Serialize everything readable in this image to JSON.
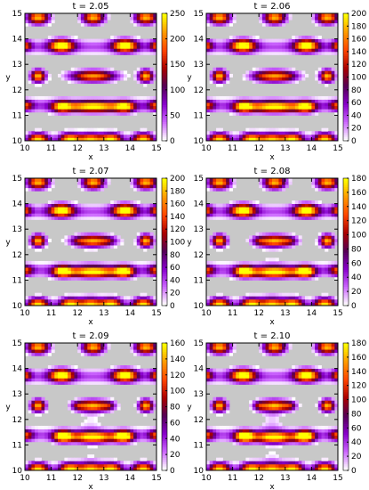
{
  "chart_data": [
    {
      "type": "heatmap",
      "title": "t = 2.05",
      "xlabel": "x",
      "ylabel": "y",
      "xlim": [
        10,
        15
      ],
      "ylim": [
        10,
        15
      ],
      "x_ticks": [
        "10",
        "11",
        "12",
        "13",
        "14",
        "15"
      ],
      "y_ticks": [
        "10",
        "11",
        "12",
        "13",
        "14",
        "15"
      ],
      "colorbar_range": [
        0,
        250
      ],
      "colorbar_ticks": [
        "0",
        "50",
        "100",
        "150",
        "200",
        "250"
      ],
      "stage": 0
    },
    {
      "type": "heatmap",
      "title": "t = 2.06",
      "xlabel": "x",
      "ylabel": "y",
      "xlim": [
        10,
        15
      ],
      "ylim": [
        10,
        15
      ],
      "x_ticks": [
        "10",
        "11",
        "12",
        "13",
        "14",
        "15"
      ],
      "y_ticks": [
        "10",
        "11",
        "12",
        "13",
        "14",
        "15"
      ],
      "colorbar_range": [
        0,
        200
      ],
      "colorbar_ticks": [
        "0",
        "20",
        "40",
        "60",
        "80",
        "100",
        "120",
        "140",
        "160",
        "180",
        "200"
      ],
      "stage": 0.2
    },
    {
      "type": "heatmap",
      "title": "t = 2.07",
      "xlabel": "x",
      "ylabel": "y",
      "xlim": [
        10,
        15
      ],
      "ylim": [
        10,
        15
      ],
      "x_ticks": [
        "10",
        "11",
        "12",
        "13",
        "14",
        "15"
      ],
      "y_ticks": [
        "10",
        "11",
        "12",
        "13",
        "14",
        "15"
      ],
      "colorbar_range": [
        0,
        200
      ],
      "colorbar_ticks": [
        "0",
        "20",
        "40",
        "60",
        "80",
        "100",
        "120",
        "140",
        "160",
        "180",
        "200"
      ],
      "stage": 0.4
    },
    {
      "type": "heatmap",
      "title": "t = 2.08",
      "xlabel": "x",
      "ylabel": "y",
      "xlim": [
        10,
        15
      ],
      "ylim": [
        10,
        15
      ],
      "x_ticks": [
        "10",
        "11",
        "12",
        "13",
        "14",
        "15"
      ],
      "y_ticks": [
        "10",
        "11",
        "12",
        "13",
        "14",
        "15"
      ],
      "colorbar_range": [
        0,
        180
      ],
      "colorbar_ticks": [
        "0",
        "20",
        "40",
        "60",
        "80",
        "100",
        "120",
        "140",
        "160",
        "180"
      ],
      "stage": 0.6
    },
    {
      "type": "heatmap",
      "title": "t = 2.09",
      "xlabel": "x",
      "ylabel": "y",
      "xlim": [
        10,
        15
      ],
      "ylim": [
        10,
        15
      ],
      "x_ticks": [
        "10",
        "11",
        "12",
        "13",
        "14",
        "15"
      ],
      "y_ticks": [
        "10",
        "11",
        "12",
        "13",
        "14",
        "15"
      ],
      "colorbar_range": [
        0,
        160
      ],
      "colorbar_ticks": [
        "0",
        "20",
        "40",
        "60",
        "80",
        "100",
        "120",
        "140",
        "160"
      ],
      "stage": 0.8
    },
    {
      "type": "heatmap",
      "title": "t = 2.10",
      "xlabel": "x",
      "ylabel": "y",
      "xlim": [
        10,
        15
      ],
      "ylim": [
        10,
        15
      ],
      "x_ticks": [
        "10",
        "11",
        "12",
        "13",
        "14",
        "15"
      ],
      "y_ticks": [
        "10",
        "11",
        "12",
        "13",
        "14",
        "15"
      ],
      "colorbar_range": [
        0,
        180
      ],
      "colorbar_ticks": [
        "0",
        "20",
        "40",
        "60",
        "80",
        "100",
        "120",
        "140",
        "160",
        "180"
      ],
      "stage": 1
    }
  ],
  "colors": {
    "background": "#c8c8c8",
    "colormap": [
      "#ffffff",
      "#cc66ff",
      "#8800cc",
      "#550055",
      "#aa0000",
      "#ff4400",
      "#ff9900",
      "#ffff00"
    ]
  }
}
